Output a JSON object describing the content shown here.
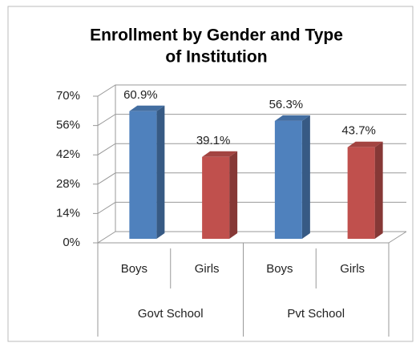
{
  "chart_data": {
    "type": "bar3d",
    "title": [
      "Enrollment by Gender and Type",
      "of Institution"
    ],
    "categories": [
      "Boys",
      "Girls",
      "Boys",
      "Girls"
    ],
    "groups": [
      "Govt School",
      "Pvt School"
    ],
    "values": [
      60.9,
      39.1,
      56.3,
      43.7
    ],
    "value_labels": [
      "60.9%",
      "39.1%",
      "56.3%",
      "43.7%"
    ],
    "colors": [
      "#4f81bd",
      "#c0504d",
      "#4f81bd",
      "#c0504d"
    ],
    "ylim": [
      0,
      70
    ],
    "yticks": [
      {
        "value": 0,
        "label": "0%"
      },
      {
        "value": 14,
        "label": "14%"
      },
      {
        "value": 28,
        "label": "28%"
      },
      {
        "value": 42,
        "label": "42%"
      },
      {
        "value": 56,
        "label": "56%"
      },
      {
        "value": 70,
        "label": "70%"
      }
    ],
    "grid": true
  }
}
